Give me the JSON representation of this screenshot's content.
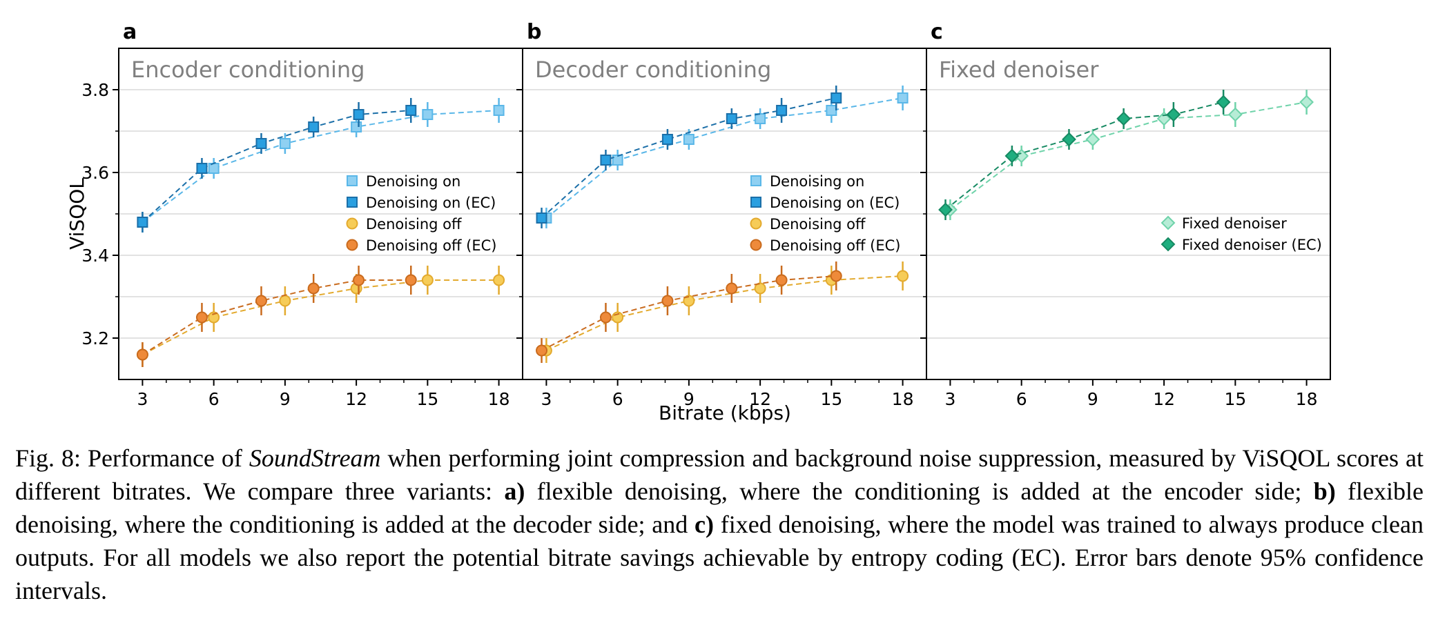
{
  "xlabel": "Bitrate (kbps)",
  "ylabel": "ViSQOL",
  "x_ticks": [
    "3",
    "6",
    "9",
    "12",
    "15",
    "18"
  ],
  "y_ticks": [
    "3.2",
    "3.4",
    "3.6",
    "3.8"
  ],
  "colors": {
    "denoising_on": "#8fd0f2",
    "denoising_on_ec": "#2a9fe0",
    "denoising_on_line": "#5ab7e8",
    "denoising_on_ec_line": "#1b6fa8",
    "denoising_off": "#f6cc58",
    "denoising_off_ec": "#ee8a3a",
    "denoising_off_line": "#e3aa2e",
    "denoising_off_ec_line": "#c96b1e",
    "fixed": "#b6ecd6",
    "fixed_ec": "#1fae7f",
    "fixed_line": "#6fd3aa",
    "fixed_ec_line": "#178a63",
    "grid": "#d9d9d9",
    "title_gray": "#7f7f7f"
  },
  "chart_data": [
    {
      "type": "line",
      "panel": "a",
      "title": "Encoder conditioning",
      "xlabel": "Bitrate (kbps)",
      "ylabel": "ViSQOL",
      "xlim": [
        2,
        19
      ],
      "ylim": [
        3.1,
        3.9
      ],
      "grid": true,
      "legend_position": "right",
      "series": [
        {
          "name": "Denoising on",
          "marker": "square",
          "style": "denoising_on",
          "x": [
            3,
            6,
            9,
            12,
            15,
            18
          ],
          "y": [
            3.48,
            3.61,
            3.67,
            3.71,
            3.74,
            3.75
          ],
          "err": [
            0.025,
            0.025,
            0.025,
            0.025,
            0.03,
            0.03
          ]
        },
        {
          "name": "Denoising on (EC)",
          "marker": "square",
          "style": "denoising_on_ec",
          "x": [
            3,
            5.5,
            8,
            10.2,
            12.1,
            14.3
          ],
          "y": [
            3.48,
            3.61,
            3.67,
            3.71,
            3.74,
            3.75
          ],
          "err": [
            0.025,
            0.025,
            0.025,
            0.025,
            0.03,
            0.03
          ]
        },
        {
          "name": "Denoising off",
          "marker": "circle",
          "style": "denoising_off",
          "x": [
            3,
            6,
            9,
            12,
            15,
            18
          ],
          "y": [
            3.16,
            3.25,
            3.29,
            3.32,
            3.34,
            3.34
          ],
          "err": [
            0.03,
            0.035,
            0.035,
            0.035,
            0.035,
            0.035
          ]
        },
        {
          "name": "Denoising off (EC)",
          "marker": "circle",
          "style": "denoising_off_ec",
          "x": [
            3,
            5.5,
            8,
            10.2,
            12.1,
            14.3
          ],
          "y": [
            3.16,
            3.25,
            3.29,
            3.32,
            3.34,
            3.34
          ],
          "err": [
            0.03,
            0.035,
            0.035,
            0.035,
            0.035,
            0.035
          ]
        }
      ]
    },
    {
      "type": "line",
      "panel": "b",
      "title": "Decoder conditioning",
      "xlabel": "Bitrate (kbps)",
      "ylabel": "",
      "xlim": [
        2,
        19
      ],
      "ylim": [
        3.1,
        3.9
      ],
      "grid": true,
      "legend_position": "right",
      "series": [
        {
          "name": "Denoising on",
          "marker": "square",
          "style": "denoising_on",
          "x": [
            3,
            6,
            9,
            12,
            15,
            18
          ],
          "y": [
            3.49,
            3.63,
            3.68,
            3.73,
            3.75,
            3.78
          ],
          "err": [
            0.025,
            0.025,
            0.025,
            0.025,
            0.03,
            0.03
          ]
        },
        {
          "name": "Denoising on (EC)",
          "marker": "square",
          "style": "denoising_on_ec",
          "x": [
            2.8,
            5.5,
            8.1,
            10.8,
            12.9,
            15.2
          ],
          "y": [
            3.49,
            3.63,
            3.68,
            3.73,
            3.75,
            3.78
          ],
          "err": [
            0.025,
            0.025,
            0.025,
            0.025,
            0.03,
            0.03
          ]
        },
        {
          "name": "Denoising off",
          "marker": "circle",
          "style": "denoising_off",
          "x": [
            3,
            6,
            9,
            12,
            15,
            18
          ],
          "y": [
            3.17,
            3.25,
            3.29,
            3.32,
            3.34,
            3.35
          ],
          "err": [
            0.03,
            0.035,
            0.035,
            0.035,
            0.035,
            0.035
          ]
        },
        {
          "name": "Denoising off (EC)",
          "marker": "circle",
          "style": "denoising_off_ec",
          "x": [
            2.8,
            5.5,
            8.1,
            10.8,
            12.9,
            15.2
          ],
          "y": [
            3.17,
            3.25,
            3.29,
            3.32,
            3.34,
            3.35
          ],
          "err": [
            0.03,
            0.035,
            0.035,
            0.035,
            0.035,
            0.035
          ]
        }
      ]
    },
    {
      "type": "line",
      "panel": "c",
      "title": "Fixed denoiser",
      "xlabel": "Bitrate (kbps)",
      "ylabel": "",
      "xlim": [
        2,
        19
      ],
      "ylim": [
        3.1,
        3.9
      ],
      "grid": true,
      "legend_position": "right",
      "series": [
        {
          "name": "Fixed denoiser",
          "marker": "diamond",
          "style": "fixed",
          "x": [
            3,
            6,
            9,
            12,
            15,
            18
          ],
          "y": [
            3.51,
            3.64,
            3.68,
            3.73,
            3.74,
            3.77
          ],
          "err": [
            0.025,
            0.025,
            0.025,
            0.025,
            0.03,
            0.03
          ]
        },
        {
          "name": "Fixed denoiser (EC)",
          "marker": "diamond",
          "style": "fixed_ec",
          "x": [
            2.8,
            5.6,
            8,
            10.3,
            12.4,
            14.5
          ],
          "y": [
            3.51,
            3.64,
            3.68,
            3.73,
            3.74,
            3.77
          ],
          "err": [
            0.025,
            0.025,
            0.025,
            0.025,
            0.03,
            0.03
          ]
        }
      ]
    }
  ],
  "caption": {
    "fig_label": "Fig. 8: Performance of ",
    "model_name": "SoundStream",
    "part1": " when performing joint compression and background noise suppression, measured by ViSQOL scores at different bitrates. We compare three variants: ",
    "a_label": "a)",
    "part2": " flexible denoising, where the conditioning is added at the encoder side; ",
    "b_label": "b)",
    "part3": " flexible denoising, where the conditioning is added at the decoder side; and ",
    "c_label": "c)",
    "part4": " fixed denoising, where the model was trained to always produce clean outputs. For all models we also report the potential bitrate savings achievable by entropy coding (EC). Error bars denote 95% confidence intervals."
  }
}
